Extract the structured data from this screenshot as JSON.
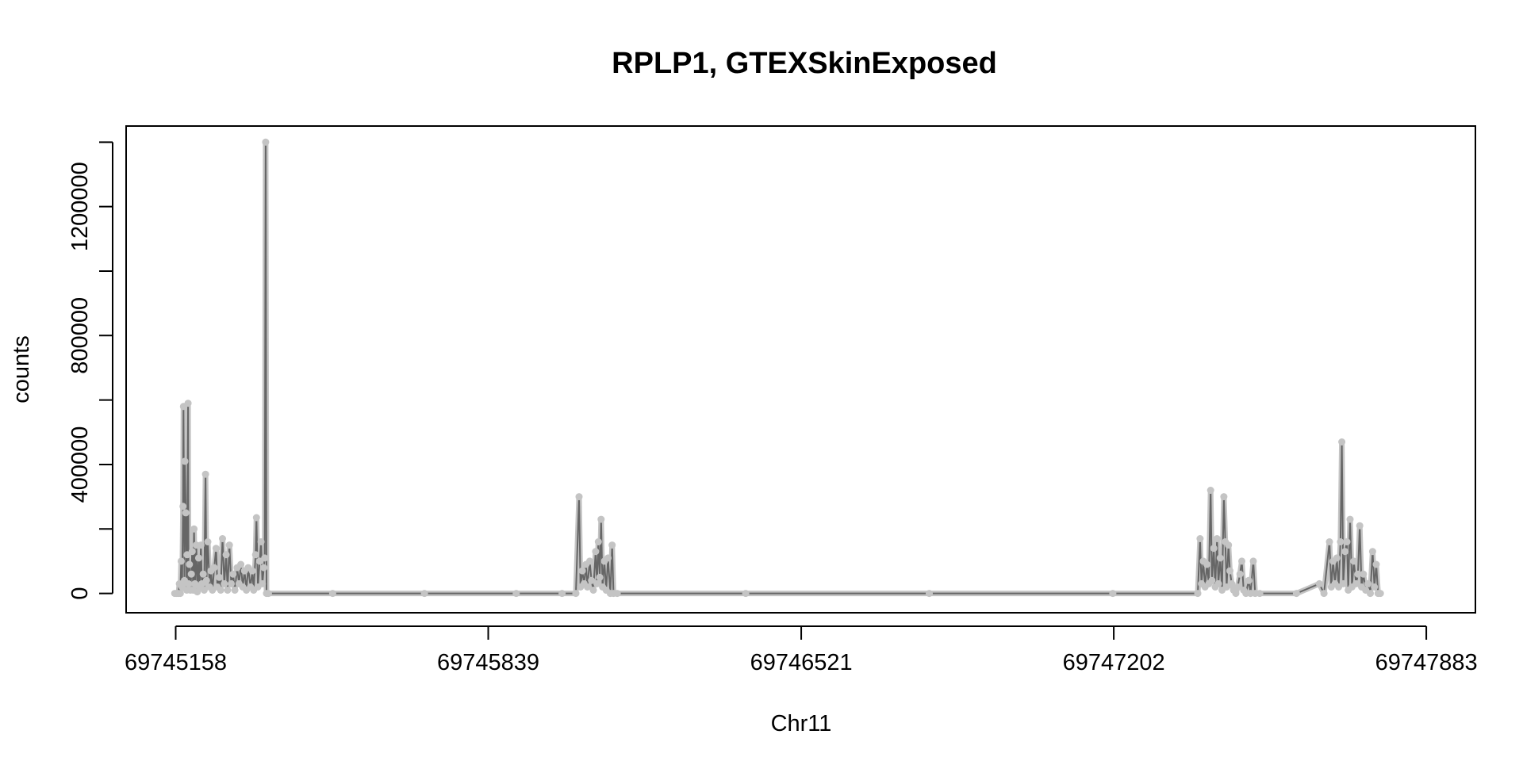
{
  "chart_data": {
    "type": "line",
    "title": "RPLP1, GTEXSkinExposed",
    "xlabel": "Chr11",
    "ylabel": "counts",
    "xlim": [
      69745050,
      69747990
    ],
    "ylim": [
      -60000,
      1450000
    ],
    "x_ticks": [
      69745158,
      69745839,
      69746521,
      69747202,
      69747883
    ],
    "x_tick_labels": [
      "69745158",
      "69745839",
      "69746521",
      "69747202",
      "69747883"
    ],
    "y_ticks": [
      0,
      200000,
      400000,
      600000,
      800000,
      1000000,
      1200000,
      1400000
    ],
    "y_tick_labels": [
      "0",
      "400000",
      "800000",
      "1200000"
    ],
    "y_labeled_ticks": [
      0,
      400000,
      800000,
      1200000
    ],
    "grid": false,
    "legend": "none",
    "colors": {
      "line": "#666666",
      "points": "#c4c4c4",
      "frame": "#000000"
    },
    "series": [
      {
        "values": [
          [
            69745156,
            0
          ],
          [
            69745160,
            0
          ],
          [
            69745164,
            0
          ],
          [
            69745166,
            30000
          ],
          [
            69745168,
            0
          ],
          [
            69745170,
            100000
          ],
          [
            69745172,
            20000
          ],
          [
            69745174,
            270000
          ],
          [
            69745175,
            580000
          ],
          [
            69745177,
            40000
          ],
          [
            69745178,
            410000
          ],
          [
            69745180,
            250000
          ],
          [
            69745182,
            10000
          ],
          [
            69745183,
            120000
          ],
          [
            69745185,
            590000
          ],
          [
            69745186,
            30000
          ],
          [
            69745188,
            90000
          ],
          [
            69745190,
            10000
          ],
          [
            69745192,
            60000
          ],
          [
            69745194,
            130000
          ],
          [
            69745196,
            10000
          ],
          [
            69745198,
            200000
          ],
          [
            69745200,
            30000
          ],
          [
            69745203,
            150000
          ],
          [
            69745205,
            5000
          ],
          [
            69745208,
            110000
          ],
          [
            69745210,
            20000
          ],
          [
            69745213,
            150000
          ],
          [
            69745215,
            30000
          ],
          [
            69745218,
            60000
          ],
          [
            69745220,
            10000
          ],
          [
            69745223,
            370000
          ],
          [
            69745225,
            40000
          ],
          [
            69745228,
            160000
          ],
          [
            69745232,
            20000
          ],
          [
            69745235,
            70000
          ],
          [
            69745238,
            10000
          ],
          [
            69745242,
            80000
          ],
          [
            69745246,
            140000
          ],
          [
            69745249,
            20000
          ],
          [
            69745253,
            50000
          ],
          [
            69745256,
            10000
          ],
          [
            69745260,
            170000
          ],
          [
            69745264,
            30000
          ],
          [
            69745268,
            120000
          ],
          [
            69745271,
            10000
          ],
          [
            69745275,
            150000
          ],
          [
            69745279,
            30000
          ],
          [
            69745283,
            60000
          ],
          [
            69745287,
            10000
          ],
          [
            69745292,
            80000
          ],
          [
            69745296,
            30000
          ],
          [
            69745300,
            90000
          ],
          [
            69745304,
            20000
          ],
          [
            69745308,
            70000
          ],
          [
            69745312,
            10000
          ],
          [
            69745316,
            80000
          ],
          [
            69745321,
            20000
          ],
          [
            69745325,
            70000
          ],
          [
            69745328,
            10000
          ],
          [
            69745332,
            120000
          ],
          [
            69745334,
            235000
          ],
          [
            69745337,
            20000
          ],
          [
            69745341,
            100000
          ],
          [
            69745344,
            160000
          ],
          [
            69745347,
            30000
          ],
          [
            69745350,
            80000
          ],
          [
            69745352,
            110000
          ],
          [
            69745354,
            1400000
          ],
          [
            69745356,
            0
          ],
          [
            69745360,
            0
          ],
          [
            69745500,
            0
          ],
          [
            69745700,
            0
          ],
          [
            69745900,
            0
          ],
          [
            69746000,
            0
          ],
          [
            69746030,
            0
          ],
          [
            69746037,
            300000
          ],
          [
            69746040,
            20000
          ],
          [
            69746044,
            70000
          ],
          [
            69746048,
            30000
          ],
          [
            69746052,
            90000
          ],
          [
            69746055,
            20000
          ],
          [
            69746060,
            100000
          ],
          [
            69746064,
            40000
          ],
          [
            69746068,
            10000
          ],
          [
            69746073,
            130000
          ],
          [
            69746076,
            30000
          ],
          [
            69746079,
            160000
          ],
          [
            69746082,
            50000
          ],
          [
            69746085,
            230000
          ],
          [
            69746088,
            20000
          ],
          [
            69746092,
            100000
          ],
          [
            69746096,
            10000
          ],
          [
            69746100,
            110000
          ],
          [
            69746105,
            0
          ],
          [
            69746109,
            150000
          ],
          [
            69746112,
            0
          ],
          [
            69746120,
            0
          ],
          [
            69746400,
            0
          ],
          [
            69746800,
            0
          ],
          [
            69747200,
            0
          ],
          [
            69747385,
            0
          ],
          [
            69747390,
            170000
          ],
          [
            69747393,
            30000
          ],
          [
            69747397,
            100000
          ],
          [
            69747401,
            20000
          ],
          [
            69747405,
            90000
          ],
          [
            69747409,
            30000
          ],
          [
            69747413,
            320000
          ],
          [
            69747416,
            40000
          ],
          [
            69747420,
            140000
          ],
          [
            69747423,
            20000
          ],
          [
            69747427,
            170000
          ],
          [
            69747430,
            30000
          ],
          [
            69747434,
            110000
          ],
          [
            69747438,
            10000
          ],
          [
            69747442,
            300000
          ],
          [
            69747445,
            160000
          ],
          [
            69747448,
            20000
          ],
          [
            69747452,
            150000
          ],
          [
            69747455,
            70000
          ],
          [
            69747459,
            30000
          ],
          [
            69747463,
            10000
          ],
          [
            69747468,
            0
          ],
          [
            69747472,
            20000
          ],
          [
            69747477,
            60000
          ],
          [
            69747481,
            100000
          ],
          [
            69747485,
            10000
          ],
          [
            69747490,
            0
          ],
          [
            69747496,
            40000
          ],
          [
            69747500,
            0
          ],
          [
            69747506,
            100000
          ],
          [
            69747510,
            0
          ],
          [
            69747520,
            0
          ],
          [
            69747600,
            0
          ],
          [
            69747650,
            30000
          ],
          [
            69747660,
            0
          ],
          [
            69747672,
            160000
          ],
          [
            69747676,
            20000
          ],
          [
            69747680,
            100000
          ],
          [
            69747684,
            30000
          ],
          [
            69747688,
            110000
          ],
          [
            69747692,
            20000
          ],
          [
            69747696,
            160000
          ],
          [
            69747699,
            470000
          ],
          [
            69747702,
            30000
          ],
          [
            69747706,
            130000
          ],
          [
            69747710,
            160000
          ],
          [
            69747713,
            10000
          ],
          [
            69747717,
            230000
          ],
          [
            69747721,
            20000
          ],
          [
            69747725,
            100000
          ],
          [
            69747730,
            30000
          ],
          [
            69747734,
            60000
          ],
          [
            69747738,
            210000
          ],
          [
            69747742,
            20000
          ],
          [
            69747746,
            60000
          ],
          [
            69747751,
            10000
          ],
          [
            69747756,
            30000
          ],
          [
            69747761,
            0
          ],
          [
            69747766,
            130000
          ],
          [
            69747770,
            20000
          ],
          [
            69747774,
            90000
          ],
          [
            69747778,
            0
          ],
          [
            69747783,
            0
          ]
        ]
      }
    ]
  }
}
